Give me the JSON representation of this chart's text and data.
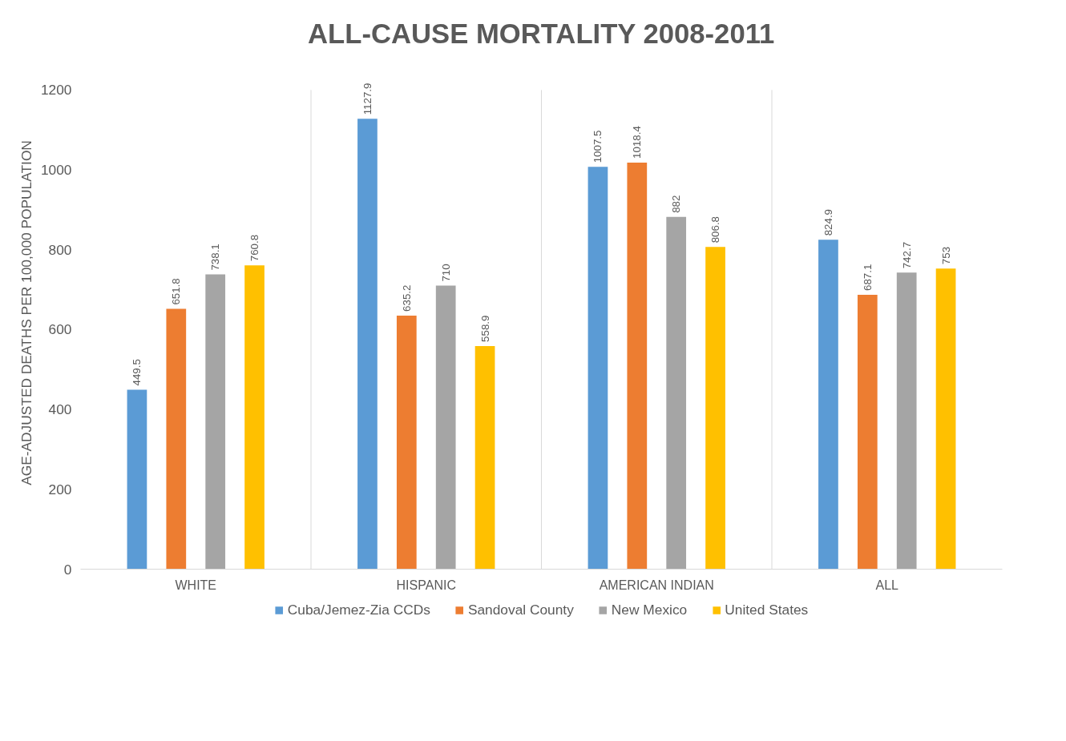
{
  "chart_data": {
    "type": "bar",
    "title": "ALL-CAUSE MORTALITY 2008-2011",
    "ylabel": "AGE-ADJUSTED DEATHS PER 100,000 POPULATION",
    "categories": [
      "WHITE",
      "HISPANIC",
      "AMERICAN INDIAN",
      "ALL"
    ],
    "series": [
      {
        "name": "Cuba/Jemez-Zia CCDs",
        "color": "#5b9bd5",
        "values": [
          449.5,
          1127.9,
          1007.5,
          824.9
        ]
      },
      {
        "name": "Sandoval County",
        "color": "#ed7d31",
        "values": [
          651.8,
          635.2,
          1018.4,
          687.1
        ]
      },
      {
        "name": "New Mexico",
        "color": "#a5a5a5",
        "values": [
          738.1,
          710,
          882,
          742.7
        ]
      },
      {
        "name": "United States",
        "color": "#ffc000",
        "values": [
          760.8,
          558.9,
          806.8,
          753
        ]
      }
    ],
    "ylim": [
      0,
      1200
    ],
    "yticks": [
      0,
      200,
      400,
      600,
      800,
      1000,
      1200
    ],
    "data_labels": true,
    "grid": "x",
    "legend": "bottom"
  }
}
